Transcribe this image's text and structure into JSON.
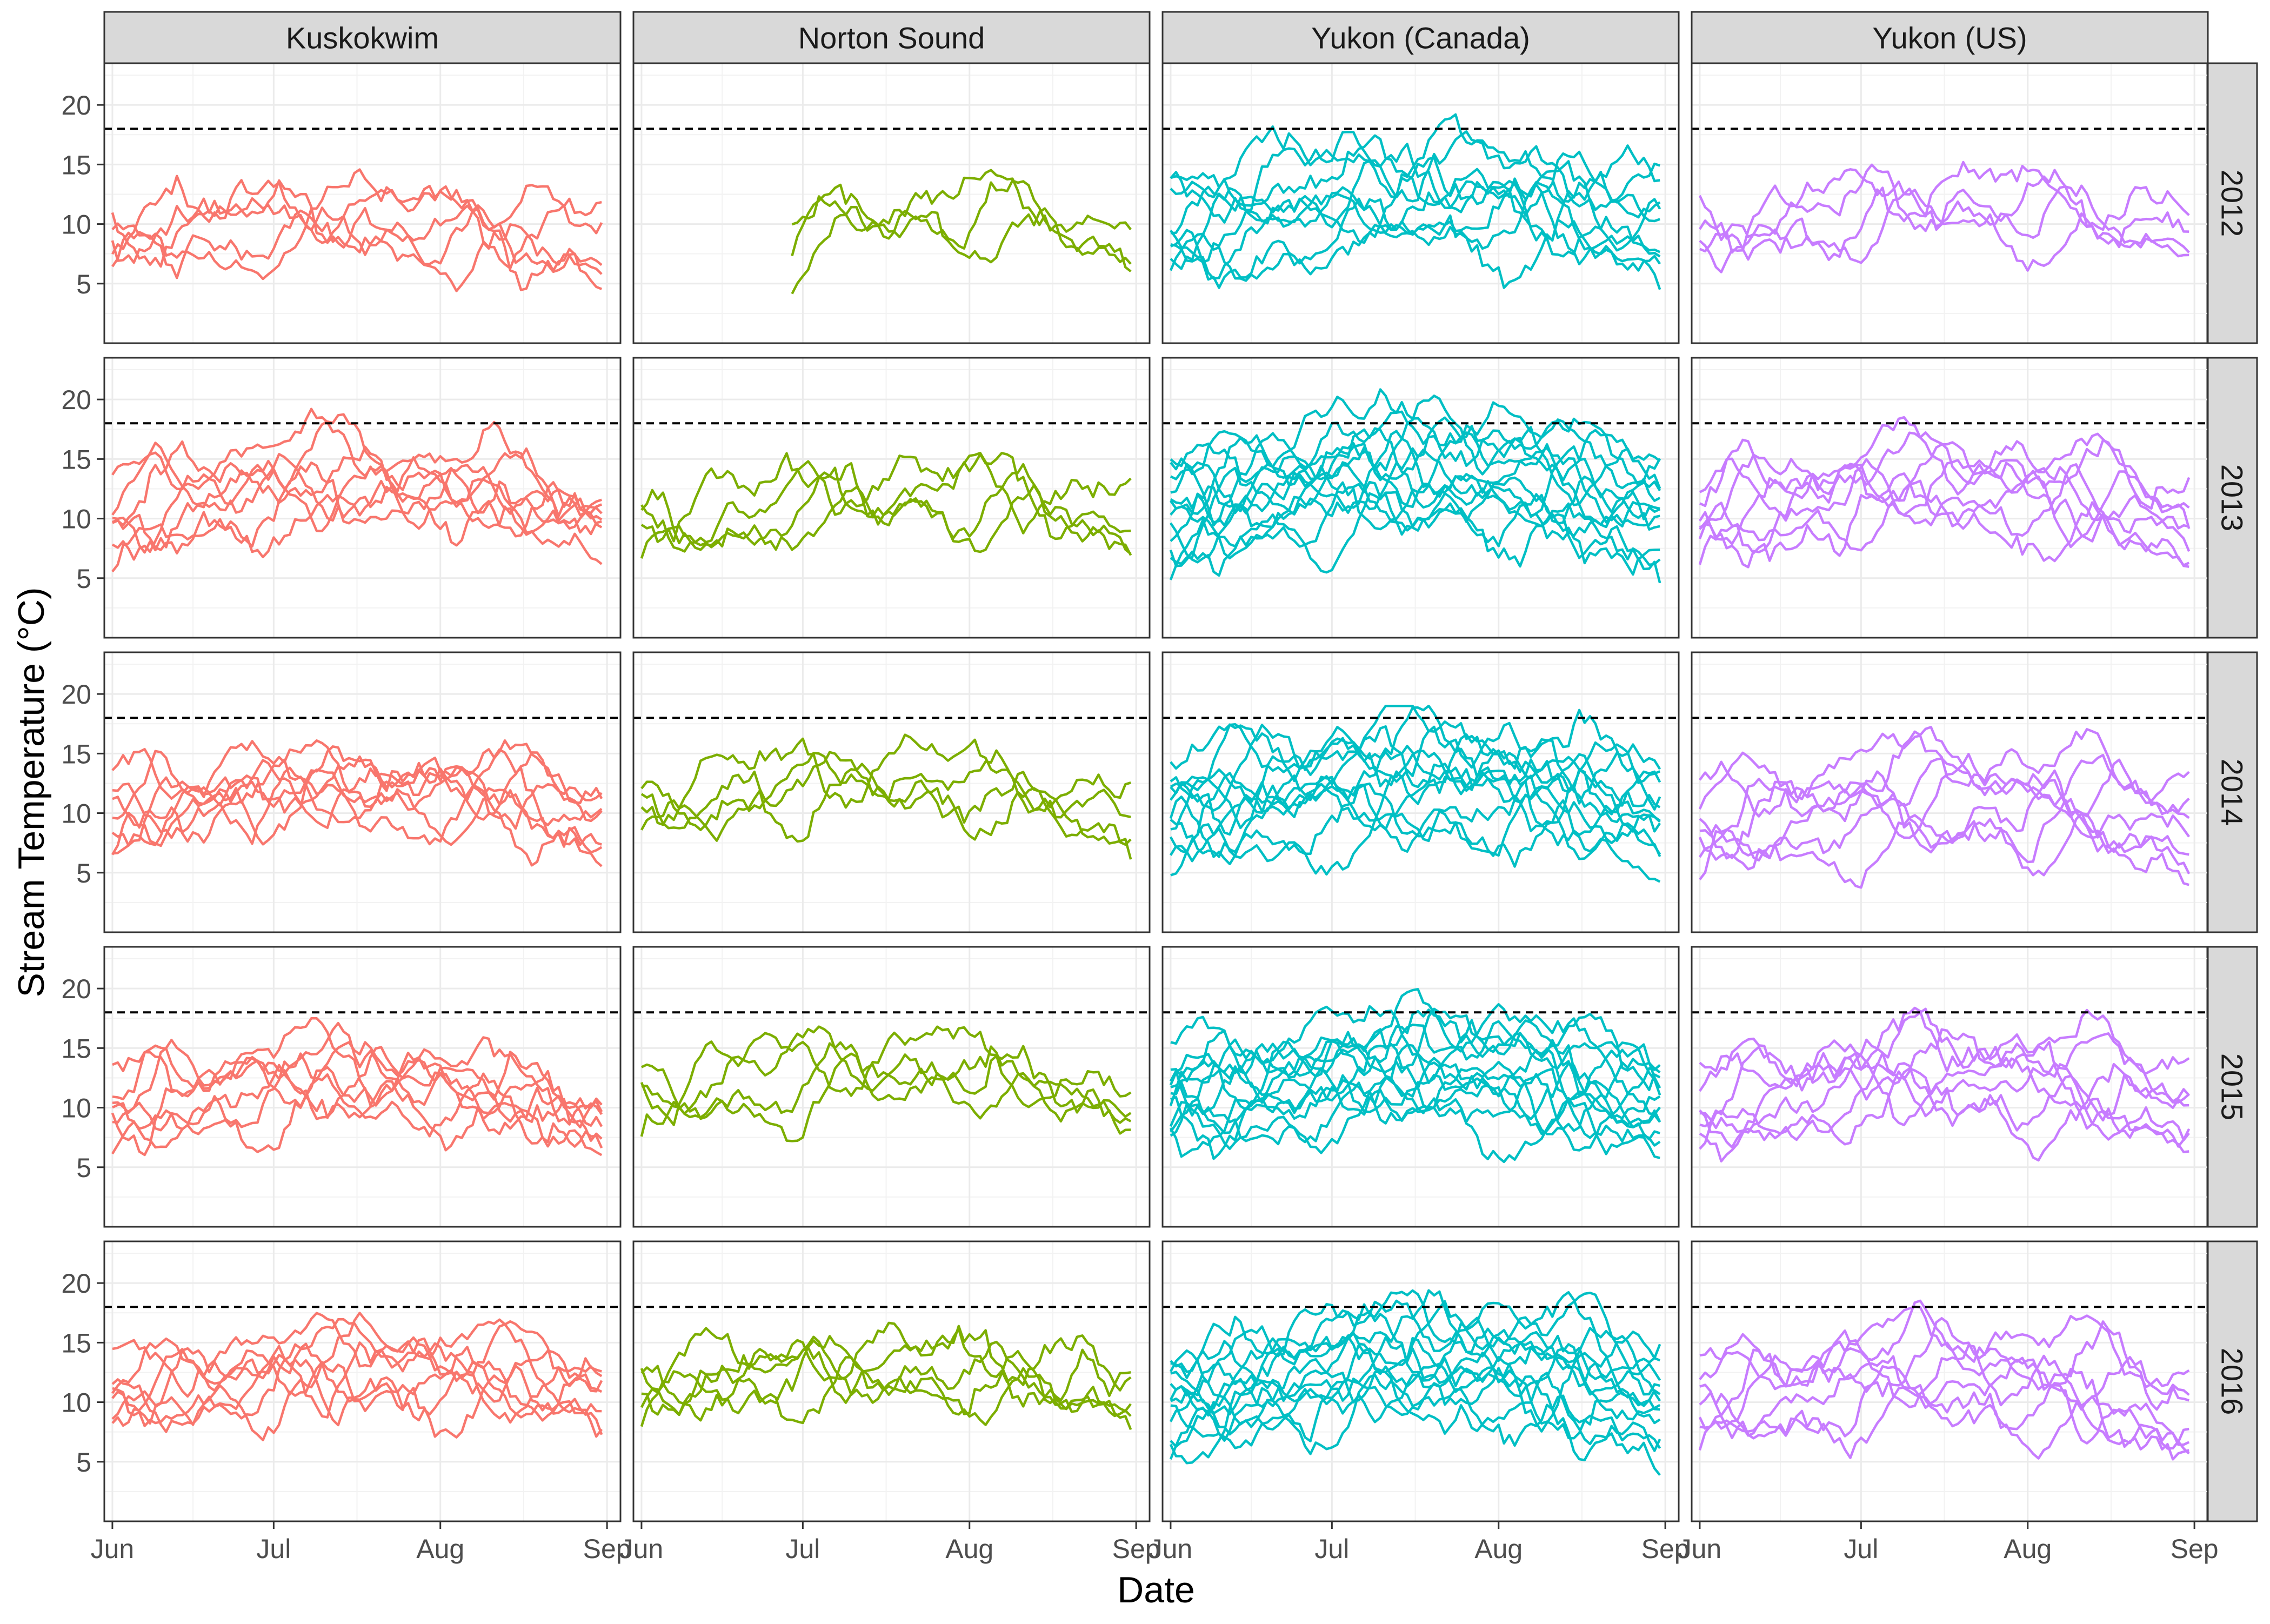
{
  "chart_data": {
    "type": "line",
    "ylabel": "Stream Temperature (°C)",
    "xlabel": "Date",
    "x_ticks": [
      "Jun",
      "Jul",
      "Aug",
      "Sep"
    ],
    "x_range_days": [
      -1.5,
      94.5
    ],
    "x_tick_days": [
      0,
      30,
      61,
      92
    ],
    "y_ticks": [
      5,
      10,
      15,
      20
    ],
    "ylim": [
      0,
      23.5
    ],
    "reference_line": {
      "value": 18,
      "style": "dashed"
    },
    "grid": true,
    "regions": [
      "Kuskokwim",
      "Norton Sound",
      "Yukon (Canada)",
      "Yukon (US)"
    ],
    "years": [
      "2012",
      "2013",
      "2014",
      "2015",
      "2016"
    ],
    "colors": {
      "Kuskokwim": "#F8766D",
      "Norton Sound": "#7CAE00",
      "Yukon (Canada)": "#00BFC4",
      "Yukon (US)": "#C77CFF"
    },
    "series_summary": {
      "Kuskokwim": {
        "2012": {
          "n_sites": 5,
          "start": 0,
          "end": 91,
          "base": 9.5,
          "amp": 2.4,
          "spread": 1.4,
          "peak": 15.2
        },
        "2013": {
          "n_sites": 7,
          "start": 0,
          "end": 91,
          "base": 11.0,
          "amp": 4.0,
          "spread": 1.6,
          "peak": 19.2
        },
        "2014": {
          "n_sites": 7,
          "start": 0,
          "end": 91,
          "base": 11.0,
          "amp": 3.0,
          "spread": 1.2,
          "peak": 17.0
        },
        "2015": {
          "n_sites": 7,
          "start": 0,
          "end": 91,
          "base": 10.5,
          "amp": 3.5,
          "spread": 1.4,
          "peak": 17.5
        },
        "2016": {
          "n_sites": 7,
          "start": 0,
          "end": 91,
          "base": 12.0,
          "amp": 2.5,
          "spread": 1.5,
          "peak": 19.0
        }
      },
      "Norton Sound": {
        "2012": {
          "n_sites": 3,
          "start": 28,
          "end": 91,
          "base": 10.0,
          "amp": 2.5,
          "spread": 0.8,
          "peak": 14.8
        },
        "2013": {
          "n_sites": 4,
          "start": 0,
          "end": 91,
          "base": 10.5,
          "amp": 3.0,
          "spread": 1.2,
          "peak": 15.5
        },
        "2014": {
          "n_sites": 4,
          "start": 0,
          "end": 91,
          "base": 11.0,
          "amp": 3.5,
          "spread": 1.0,
          "peak": 17.2
        },
        "2015": {
          "n_sites": 4,
          "start": 0,
          "end": 91,
          "base": 11.5,
          "amp": 3.5,
          "spread": 1.0,
          "peak": 16.8
        },
        "2016": {
          "n_sites": 5,
          "start": 0,
          "end": 91,
          "base": 12.0,
          "amp": 2.5,
          "spread": 1.0,
          "peak": 17.4
        }
      },
      "Yukon (Canada)": {
        "2012": {
          "n_sites": 9,
          "start": 0,
          "end": 91,
          "base": 11.0,
          "amp": 3.0,
          "spread": 2.5,
          "peak": 19.2
        },
        "2013": {
          "n_sites": 12,
          "start": 0,
          "end": 91,
          "base": 12.0,
          "amp": 3.5,
          "spread": 2.6,
          "peak": 22.0
        },
        "2014": {
          "n_sites": 11,
          "start": 0,
          "end": 91,
          "base": 11.5,
          "amp": 3.0,
          "spread": 2.4,
          "peak": 19.0
        },
        "2015": {
          "n_sites": 12,
          "start": 0,
          "end": 91,
          "base": 12.0,
          "amp": 3.0,
          "spread": 2.4,
          "peak": 20.4
        },
        "2016": {
          "n_sites": 12,
          "start": 0,
          "end": 91,
          "base": 11.5,
          "amp": 3.5,
          "spread": 2.5,
          "peak": 21.2
        }
      },
      "Yukon (US)": {
        "2012": {
          "n_sites": 4,
          "start": 0,
          "end": 91,
          "base": 10.5,
          "amp": 2.5,
          "spread": 1.2,
          "peak": 15.2
        },
        "2013": {
          "n_sites": 7,
          "start": 0,
          "end": 91,
          "base": 11.0,
          "amp": 3.5,
          "spread": 1.8,
          "peak": 18.5
        },
        "2014": {
          "n_sites": 7,
          "start": 0,
          "end": 91,
          "base": 10.0,
          "amp": 3.0,
          "spread": 2.2,
          "peak": 19.3
        },
        "2015": {
          "n_sites": 7,
          "start": 0,
          "end": 91,
          "base": 11.0,
          "amp": 3.5,
          "spread": 2.0,
          "peak": 19.7
        },
        "2016": {
          "n_sites": 7,
          "start": 0,
          "end": 91,
          "base": 11.0,
          "amp": 3.0,
          "spread": 2.0,
          "peak": 20.5
        }
      }
    }
  }
}
